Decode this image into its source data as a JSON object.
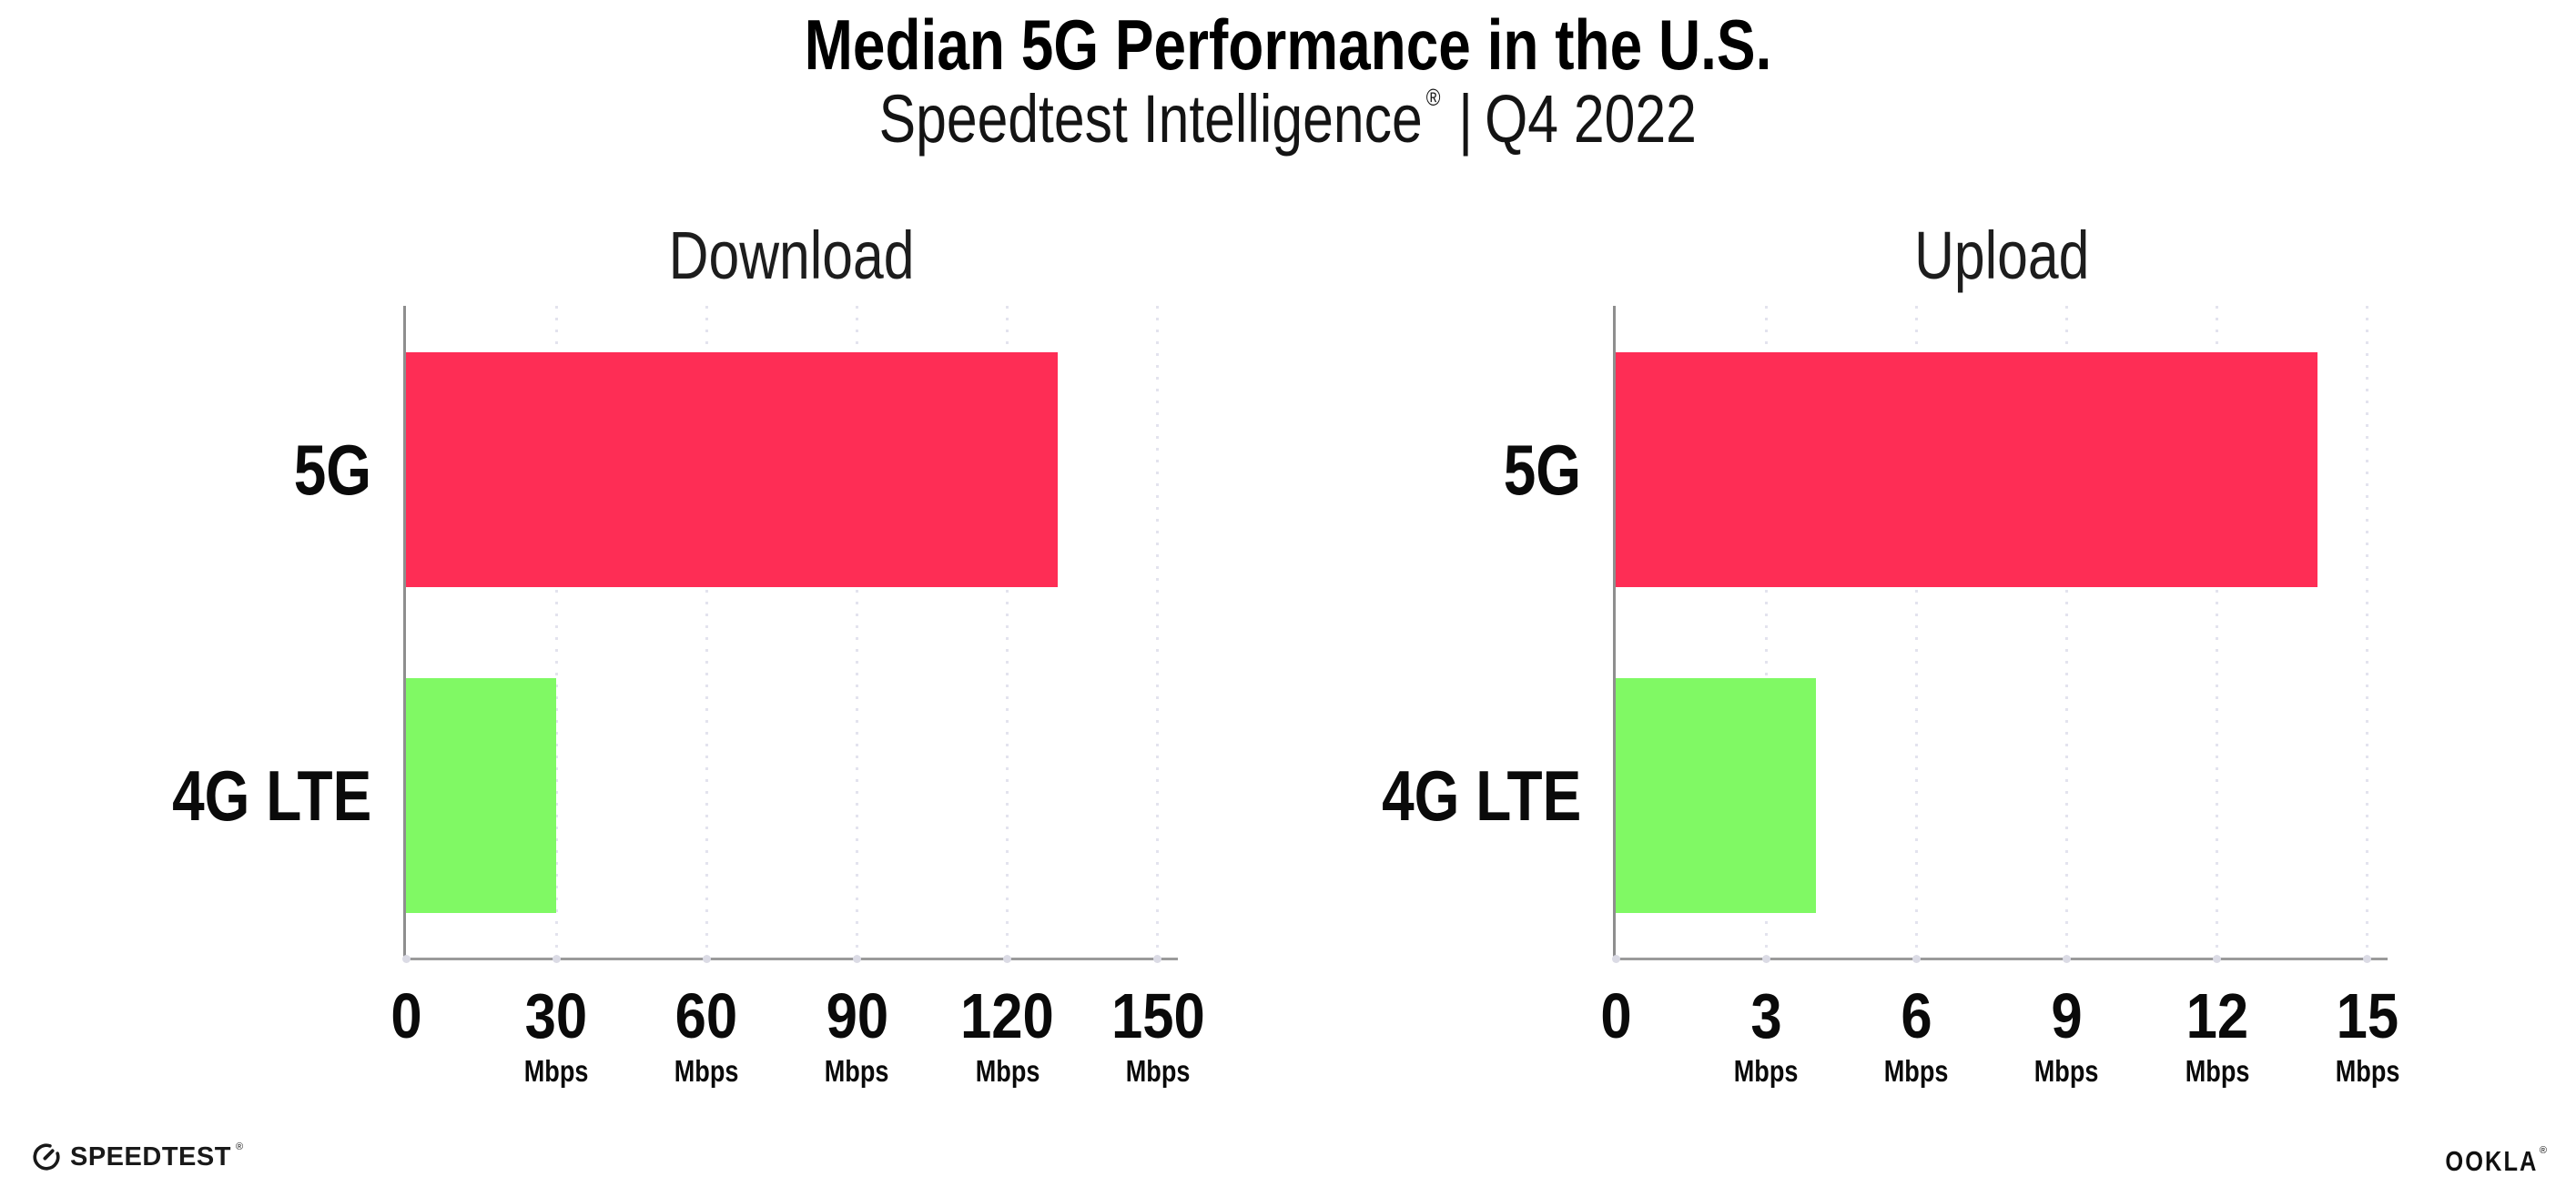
{
  "header": {
    "title": "Median 5G Performance in the U.S.",
    "subtitle": {
      "brand": "Speedtest Intelligence",
      "reg": "®",
      "separator": "|",
      "period": "Q4 2022"
    }
  },
  "chart_data": {
    "type": "bar",
    "orientation": "horizontal",
    "categories": [
      "5G",
      "4G LTE"
    ],
    "series_colors": {
      "5G": "#FE2D55",
      "4G LTE": "#80F964"
    },
    "legend": "none",
    "grid": "vertical-dotted",
    "panels": [
      {
        "title": "Download",
        "unit": "Mbps",
        "ticks": [
          0,
          30,
          60,
          90,
          120,
          150
        ],
        "xlim": [
          0,
          154
        ],
        "values": {
          "5G": 130,
          "4G LTE": 30
        }
      },
      {
        "title": "Upload",
        "unit": "Mbps",
        "ticks": [
          0,
          3,
          6,
          9,
          12,
          15
        ],
        "xlim": [
          0,
          15.4
        ],
        "values": {
          "5G": 14,
          "4G LTE": 4
        }
      }
    ]
  },
  "footer": {
    "speedtest": {
      "label": "SPEEDTEST",
      "reg": "®"
    },
    "ookla": {
      "label": "OOKLA",
      "reg": "®"
    }
  },
  "colors": {
    "bar_5g": "#FE2D55",
    "bar_4g_lte": "#80F964",
    "gridline": "#E3E3EE",
    "axis_x": "#9B9B9B",
    "axis_y": "#8E8E8E",
    "text": "#111111"
  }
}
